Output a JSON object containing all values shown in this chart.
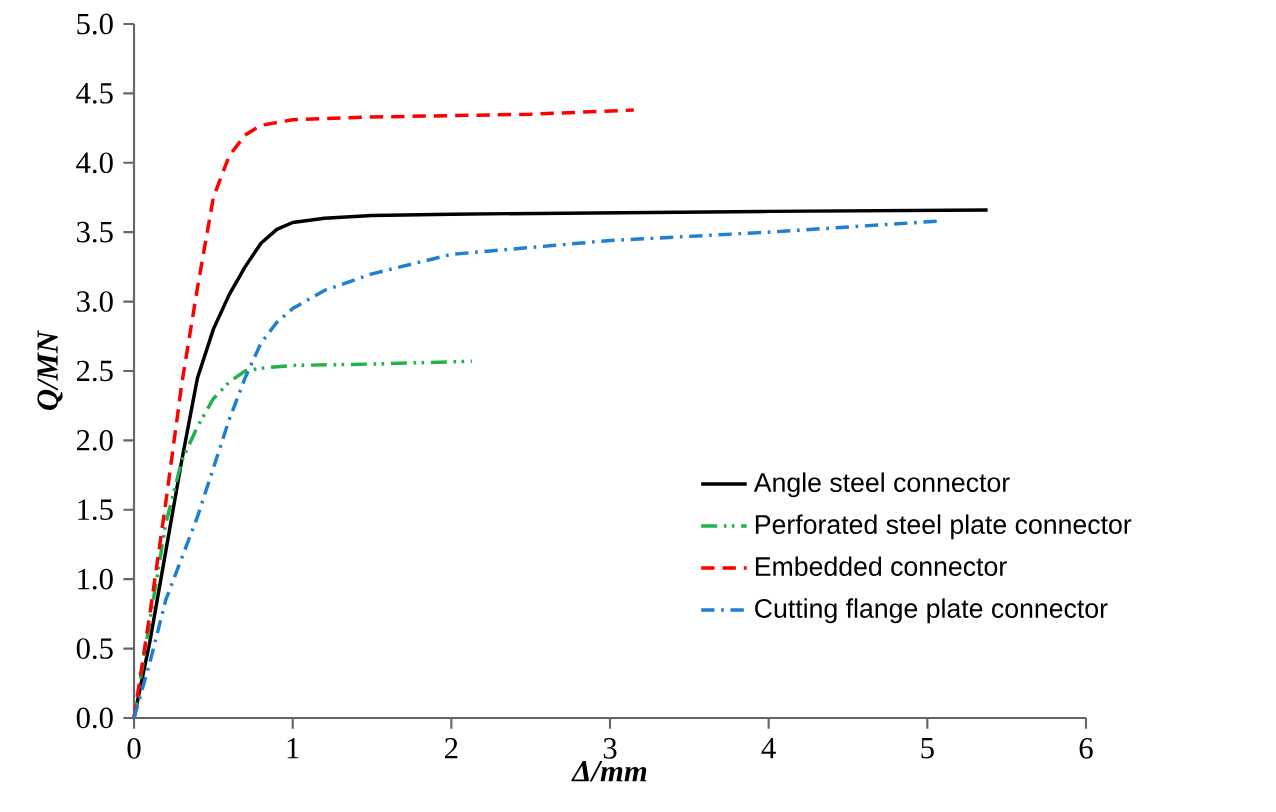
{
  "chart_data": {
    "type": "line",
    "xlabel": "Δ/mm",
    "ylabel": "Q/MN",
    "xlim": [
      0,
      6
    ],
    "xticks": [
      0,
      1,
      2,
      3,
      4,
      5,
      6
    ],
    "ylim": [
      0,
      5
    ],
    "yticks": [
      {
        "value": 0,
        "label": "0.0"
      },
      {
        "value": 0.5,
        "label": "0.5"
      },
      {
        "value": 1,
        "label": "1.0"
      },
      {
        "value": 1.5,
        "label": "1.5"
      },
      {
        "value": 2,
        "label": "2.0"
      },
      {
        "value": 2.5,
        "label": "2.5"
      },
      {
        "value": 3,
        "label": "3.0"
      },
      {
        "value": 3.5,
        "label": "3.5"
      },
      {
        "value": 4,
        "label": "4.0"
      },
      {
        "value": 4.5,
        "label": "4.5"
      },
      {
        "value": 5,
        "label": "5.0"
      }
    ],
    "grid": false,
    "legend": "right",
    "marker": "none",
    "series": [
      {
        "name": "Angle steel connector",
        "color": "#000000",
        "line_style": "solid",
        "x": [
          0,
          0.1,
          0.2,
          0.3,
          0.4,
          0.5,
          0.6,
          0.7,
          0.8,
          0.9,
          1.0,
          1.2,
          1.5,
          2,
          3,
          4,
          5.38
        ],
        "values": [
          0,
          0.55,
          1.2,
          1.85,
          2.45,
          2.8,
          3.05,
          3.25,
          3.42,
          3.52,
          3.57,
          3.6,
          3.62,
          3.63,
          3.64,
          3.65,
          3.66
        ]
      },
      {
        "name": "Perforated steel plate connector",
        "color": "#22b14c",
        "line_style": "dashdotdot",
        "x": [
          0,
          0.1,
          0.2,
          0.3,
          0.4,
          0.5,
          0.6,
          0.7,
          0.8,
          1.0,
          1.5,
          2.13
        ],
        "values": [
          0,
          0.7,
          1.4,
          1.85,
          2.1,
          2.3,
          2.42,
          2.5,
          2.52,
          2.54,
          2.55,
          2.57
        ]
      },
      {
        "name": "Embedded connector",
        "color": "#ff0000",
        "line_style": "dashed",
        "x": [
          0,
          0.1,
          0.2,
          0.3,
          0.4,
          0.5,
          0.6,
          0.7,
          0.8,
          1.0,
          1.5,
          2,
          2.5,
          3.15
        ],
        "values": [
          0,
          0.75,
          1.55,
          2.4,
          3.1,
          3.75,
          4.05,
          4.2,
          4.27,
          4.31,
          4.33,
          4.34,
          4.35,
          4.38
        ]
      },
      {
        "name": "Cutting flange plate connector",
        "color": "#1f7fd0",
        "line_style": "dashdot",
        "x": [
          0,
          0.1,
          0.2,
          0.3,
          0.4,
          0.5,
          0.6,
          0.7,
          0.8,
          0.9,
          1.0,
          1.2,
          1.5,
          2,
          3,
          4,
          5.07
        ],
        "values": [
          0,
          0.4,
          0.85,
          1.15,
          1.45,
          1.8,
          2.15,
          2.45,
          2.7,
          2.85,
          2.95,
          3.08,
          3.2,
          3.34,
          3.44,
          3.5,
          3.58
        ]
      }
    ]
  }
}
